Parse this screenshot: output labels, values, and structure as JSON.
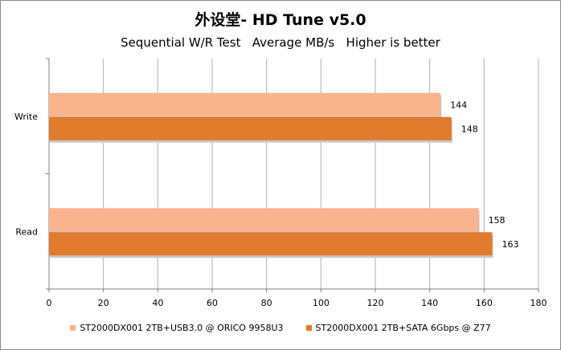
{
  "chart_data": {
    "type": "bar",
    "orientation": "horizontal",
    "title": "外设堂- HD Tune v5.0",
    "subtitle": "Sequential W/R Test   Average MB/s   Higher is better",
    "categories": [
      "Write",
      "Read"
    ],
    "series": [
      {
        "name": "ST2000DX001 2TB+USB3.0 @ ORICO 9958U3",
        "values": [
          144,
          158
        ],
        "color": "#f9b48e"
      },
      {
        "name": "ST2000DX001 2TB+SATA 6Gbps @ Z77",
        "values": [
          148,
          163
        ],
        "color": "#e07b2e"
      }
    ],
    "xlim": [
      0,
      180
    ],
    "xticks": [
      "0",
      "20",
      "40",
      "60",
      "80",
      "100",
      "120",
      "140",
      "160",
      "180"
    ],
    "grid": true,
    "legend": "bottom"
  }
}
